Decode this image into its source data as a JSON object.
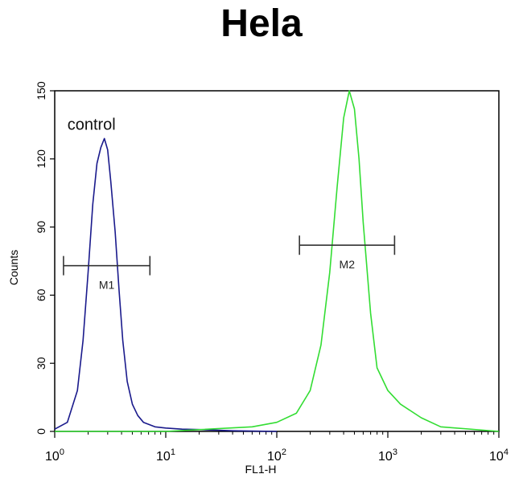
{
  "chart_data": {
    "type": "line",
    "title": "Hela",
    "xlabel": "FL1-H",
    "ylabel": "Counts",
    "x_scale": "log",
    "xlim": [
      1,
      10000
    ],
    "ylim": [
      0,
      150
    ],
    "x_ticks": [
      {
        "value": 1,
        "base": "10",
        "exp": "0"
      },
      {
        "value": 10,
        "base": "10",
        "exp": "1"
      },
      {
        "value": 100,
        "base": "10",
        "exp": "2"
      },
      {
        "value": 1000,
        "base": "10",
        "exp": "3"
      },
      {
        "value": 10000,
        "base": "10",
        "exp": "4"
      }
    ],
    "y_ticks": [
      0,
      30,
      60,
      90,
      120,
      150
    ],
    "grid": false,
    "series": [
      {
        "name": "control",
        "color": "#1a1a8c",
        "x": [
          1.0,
          1.3,
          1.6,
          1.8,
          2.0,
          2.2,
          2.4,
          2.6,
          2.8,
          3.0,
          3.2,
          3.5,
          3.8,
          4.1,
          4.5,
          5.0,
          5.6,
          6.3,
          7.1,
          8.0,
          10.0,
          14.0,
          20.0,
          40.0,
          100.0
        ],
        "y": [
          1,
          4,
          18,
          40,
          70,
          100,
          118,
          125,
          129,
          124,
          110,
          88,
          62,
          40,
          22,
          12,
          7,
          4,
          3,
          2,
          1.5,
          1,
          0.8,
          0.3,
          0
        ]
      },
      {
        "name": "",
        "color": "#33dd33",
        "x": [
          1.0,
          10.0,
          60.0,
          100.0,
          150.0,
          200.0,
          250.0,
          300.0,
          350.0,
          400.0,
          450.0,
          500.0,
          550.0,
          600.0,
          700.0,
          800.0,
          1000.0,
          1300.0,
          2000.0,
          3000.0,
          10000.0
        ],
        "y": [
          0,
          0,
          2,
          4,
          8,
          18,
          38,
          70,
          108,
          138,
          150,
          142,
          120,
          92,
          52,
          28,
          18,
          12,
          6,
          2,
          0
        ]
      }
    ],
    "markers": [
      {
        "label": "M1",
        "x_start": 1.2,
        "x_end": 7.2,
        "y": 73
      },
      {
        "label": "M2",
        "x_start": 160,
        "x_end": 1150,
        "y": 82
      }
    ],
    "annotations": [
      {
        "text": "control",
        "x": 1.3,
        "y": 135
      }
    ]
  }
}
